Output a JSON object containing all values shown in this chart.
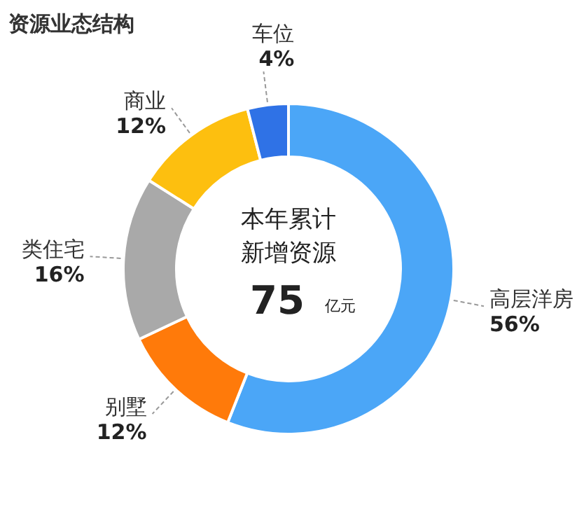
{
  "chart_data": {
    "type": "donut",
    "title": "资源业态结构",
    "categories": [
      "高层洋房",
      "别墅",
      "类住宅",
      "商业",
      "车位"
    ],
    "values": [
      56,
      12,
      16,
      12,
      4
    ],
    "colors": [
      "#4ba6f7",
      "#ff7a0a",
      "#a9a9a9",
      "#fdbf0f",
      "#2f72e6"
    ],
    "value_labels": [
      "56%",
      "12%",
      "16%",
      "12%",
      "4%"
    ],
    "annotations": [
      "本年累计",
      "新增资源",
      "75",
      "亿元"
    ]
  }
}
